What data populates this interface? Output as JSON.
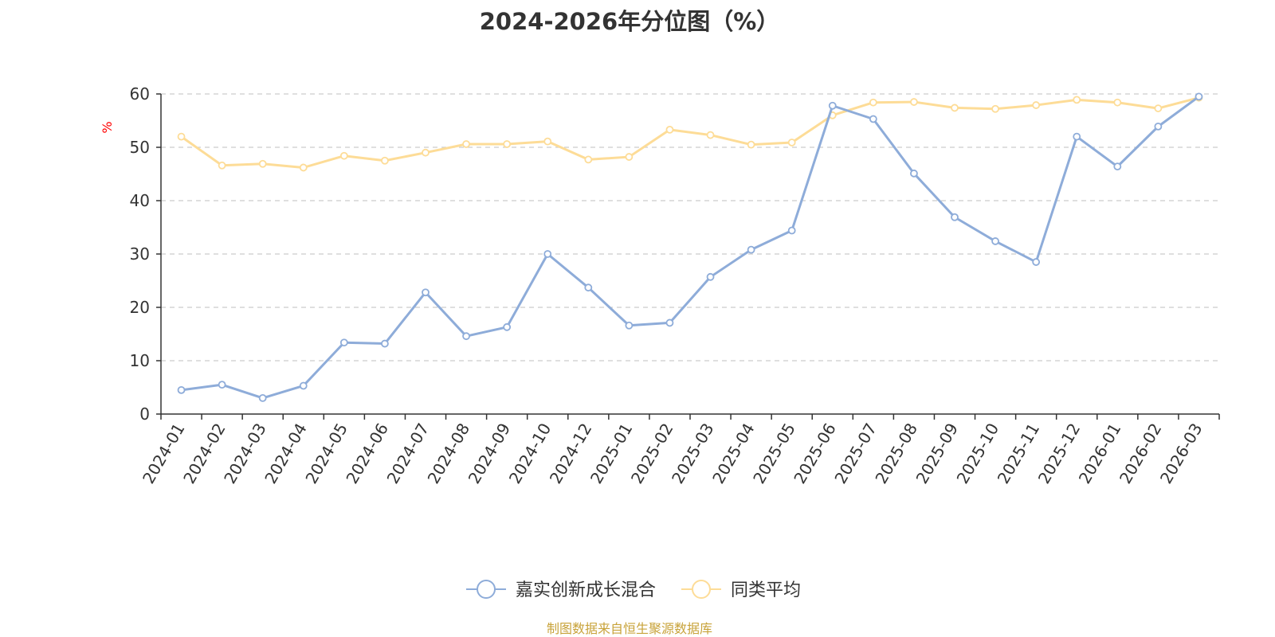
{
  "chart_data": {
    "type": "line",
    "title": "2024-2026年分位图（%）",
    "ylabel": "%",
    "ylim": [
      0,
      60
    ],
    "yticks": [
      0,
      10,
      20,
      30,
      40,
      50,
      60
    ],
    "grid": true,
    "legend_position": "bottom-center",
    "categories": [
      "2024-01",
      "2024-02",
      "2024-03",
      "2024-04",
      "2024-05",
      "2024-06",
      "2024-07",
      "2024-08",
      "2024-09",
      "2024-10",
      "2024-12",
      "2025-01",
      "2025-02",
      "2025-03",
      "2025-04",
      "2025-05",
      "2025-06",
      "2025-07",
      "2025-08",
      "2025-09",
      "2025-10",
      "2025-11",
      "2025-12",
      "2026-01",
      "2026-02",
      "2026-03"
    ],
    "series": [
      {
        "name": "嘉实创新成长混合",
        "color": "#8eacd9",
        "values": [
          4.5,
          5.5,
          3.0,
          5.3,
          13.4,
          13.2,
          22.8,
          14.6,
          16.3,
          30.0,
          23.7,
          16.6,
          17.1,
          25.7,
          30.8,
          34.4,
          57.8,
          55.3,
          45.1,
          36.9,
          32.4,
          28.5,
          52.0,
          46.4,
          53.9,
          59.5
        ]
      },
      {
        "name": "同类平均",
        "color": "#fddc97",
        "values": [
          52.0,
          46.6,
          46.9,
          46.2,
          48.4,
          47.5,
          49.0,
          50.6,
          50.6,
          51.1,
          47.7,
          48.2,
          53.3,
          52.3,
          50.5,
          50.9,
          56.0,
          58.4,
          58.5,
          57.4,
          57.2,
          57.9,
          58.9,
          58.4,
          57.3,
          59.3
        ]
      }
    ]
  },
  "source_note": "制图数据来自恒生聚源数据库",
  "colors": {
    "axis": "#333333",
    "grid": "#cccccc",
    "ylabel": "#ff0000",
    "source": "#c8a33a"
  }
}
